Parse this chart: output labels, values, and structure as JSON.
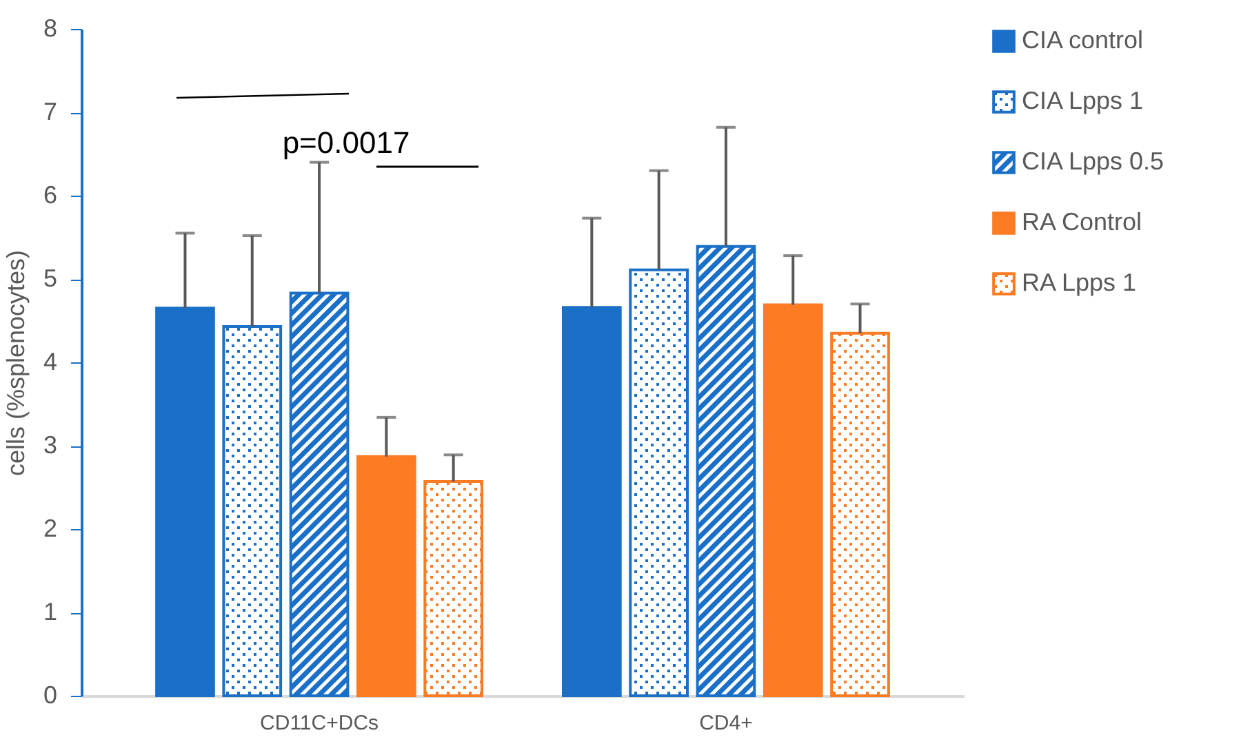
{
  "chart_data": {
    "type": "bar",
    "ylabel": "cells (%splenocytes)",
    "categories": [
      "CD11C+DCs",
      "CD4+"
    ],
    "series": [
      {
        "name": "CIA control",
        "color": "#1a70c8",
        "values": [
          4.65,
          4.66
        ],
        "errors": [
          [
            4.65,
            5.55
          ],
          [
            4.66,
            5.73
          ]
        ]
      },
      {
        "name": "CIA Lpps 1",
        "color": "#1a70c8",
        "values": [
          4.43,
          5.11
        ],
        "errors": [
          [
            4.43,
            5.52
          ],
          [
            5.11,
            6.3
          ]
        ]
      },
      {
        "name": "CIA Lpps 0.5",
        "color": "#1a70c8",
        "values": [
          4.83,
          5.39
        ],
        "errors": [
          [
            4.83,
            6.4
          ],
          [
            5.39,
            6.82
          ]
        ]
      },
      {
        "name": "RA Control",
        "color": "#fd7b23",
        "values": [
          2.87,
          4.69
        ],
        "errors": [
          [
            2.87,
            3.34
          ],
          [
            4.69,
            5.28
          ]
        ]
      },
      {
        "name": "RA Lpps 1",
        "color": "#fd7b23",
        "values": [
          2.57,
          4.35
        ],
        "errors": [
          [
            2.57,
            2.89
          ],
          [
            4.35,
            4.7
          ]
        ]
      }
    ],
    "ylim": [
      0,
      8
    ],
    "yticks": [
      0,
      1,
      2,
      3,
      4,
      5,
      6,
      7,
      8
    ],
    "grid": false,
    "legend": "right",
    "annotations": [
      "p=0.0017"
    ]
  }
}
